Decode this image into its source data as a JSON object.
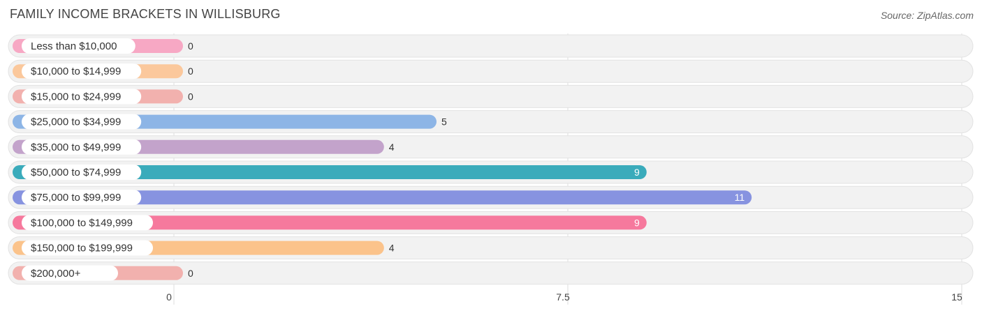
{
  "title": "FAMILY INCOME BRACKETS IN WILLISBURG",
  "source": "Source: ZipAtlas.com",
  "chart_data": {
    "type": "bar",
    "orientation": "horizontal",
    "title": "FAMILY INCOME BRACKETS IN WILLISBURG",
    "xlabel": "",
    "ylabel": "",
    "xlim": [
      0,
      15
    ],
    "ticks": [
      0,
      7.5,
      15
    ],
    "tick_labels": [
      "0",
      "7.5",
      "15"
    ],
    "grid": true,
    "categories": [
      "Less than $10,000",
      "$10,000 to $14,999",
      "$15,000 to $24,999",
      "$25,000 to $34,999",
      "$35,000 to $49,999",
      "$50,000 to $74,999",
      "$75,000 to $99,999",
      "$100,000 to $149,999",
      "$150,000 to $199,999",
      "$200,000+"
    ],
    "values": [
      0,
      0,
      0,
      5,
      4,
      9,
      11,
      9,
      4,
      0
    ],
    "colors": [
      "#f7a8c4",
      "#fbc89c",
      "#f2b1ae",
      "#8db5e6",
      "#c3a3cb",
      "#3aabbb",
      "#8793e0",
      "#f6799d",
      "#fbc38b",
      "#f2b1ae"
    ]
  }
}
